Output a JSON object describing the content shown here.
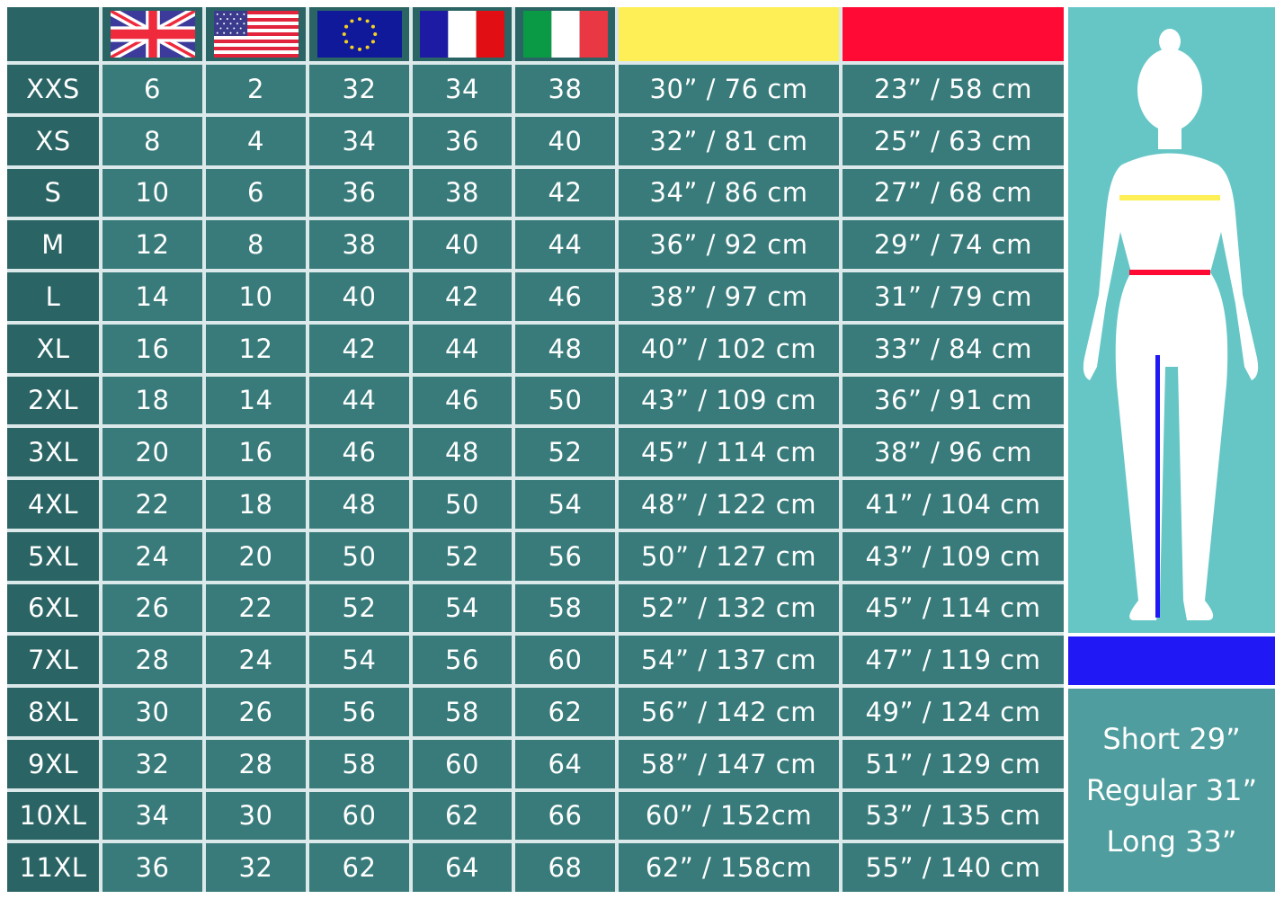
{
  "header": {
    "flags": [
      {
        "icon": "uk-flag-icon",
        "label": "UK"
      },
      {
        "icon": "us-flag-icon",
        "label": "US"
      },
      {
        "icon": "eu-flag-icon",
        "label": "EU"
      },
      {
        "icon": "france-flag-icon",
        "label": "FR"
      },
      {
        "icon": "italy-flag-icon",
        "label": "IT"
      }
    ],
    "bust_color": "#fdef55",
    "waist_color": "#fe0a34",
    "inseam_color": "#2018f5"
  },
  "rows": [
    [
      "XXS",
      "6",
      "2",
      "32",
      "34",
      "38",
      "30” / 76 cm",
      "23” / 58 cm"
    ],
    [
      "XS",
      "8",
      "4",
      "34",
      "36",
      "40",
      "32” / 81 cm",
      "25” / 63 cm"
    ],
    [
      "S",
      "10",
      "6",
      "36",
      "38",
      "42",
      "34” / 86 cm",
      "27” / 68 cm"
    ],
    [
      "M",
      "12",
      "8",
      "38",
      "40",
      "44",
      "36” / 92 cm",
      "29” / 74 cm"
    ],
    [
      "L",
      "14",
      "10",
      "40",
      "42",
      "46",
      "38” / 97 cm",
      "31” / 79 cm"
    ],
    [
      "XL",
      "16",
      "12",
      "42",
      "44",
      "48",
      "40” / 102 cm",
      "33” / 84 cm"
    ],
    [
      "2XL",
      "18",
      "14",
      "44",
      "46",
      "50",
      "43” / 109 cm",
      "36” / 91 cm"
    ],
    [
      "3XL",
      "20",
      "16",
      "46",
      "48",
      "52",
      "45” / 114 cm",
      "38” / 96 cm"
    ],
    [
      "4XL",
      "22",
      "18",
      "48",
      "50",
      "54",
      "48” / 122 cm",
      "41” / 104 cm"
    ],
    [
      "5XL",
      "24",
      "20",
      "50",
      "52",
      "56",
      "50” / 127 cm",
      "43” / 109 cm"
    ],
    [
      "6XL",
      "26",
      "22",
      "52",
      "54",
      "58",
      "52” / 132 cm",
      "45” / 114 cm"
    ],
    [
      "7XL",
      "28",
      "24",
      "54",
      "56",
      "60",
      "54” / 137 cm",
      "47” / 119 cm"
    ],
    [
      "8XL",
      "30",
      "26",
      "56",
      "58",
      "62",
      "56” / 142 cm",
      "49” / 124 cm"
    ],
    [
      "9XL",
      "32",
      "28",
      "58",
      "60",
      "64",
      "58” / 147 cm",
      "51” / 129 cm"
    ],
    [
      "10XL",
      "34",
      "30",
      "60",
      "62",
      "66",
      "60” / 152cm",
      "53” / 135 cm"
    ],
    [
      "11XL",
      "36",
      "32",
      "62",
      "64",
      "68",
      "62” / 158cm",
      "55” / 140 cm"
    ]
  ],
  "inseam": {
    "short": "Short 29”",
    "regular": "Regular 31”",
    "long": "Long 33”"
  }
}
